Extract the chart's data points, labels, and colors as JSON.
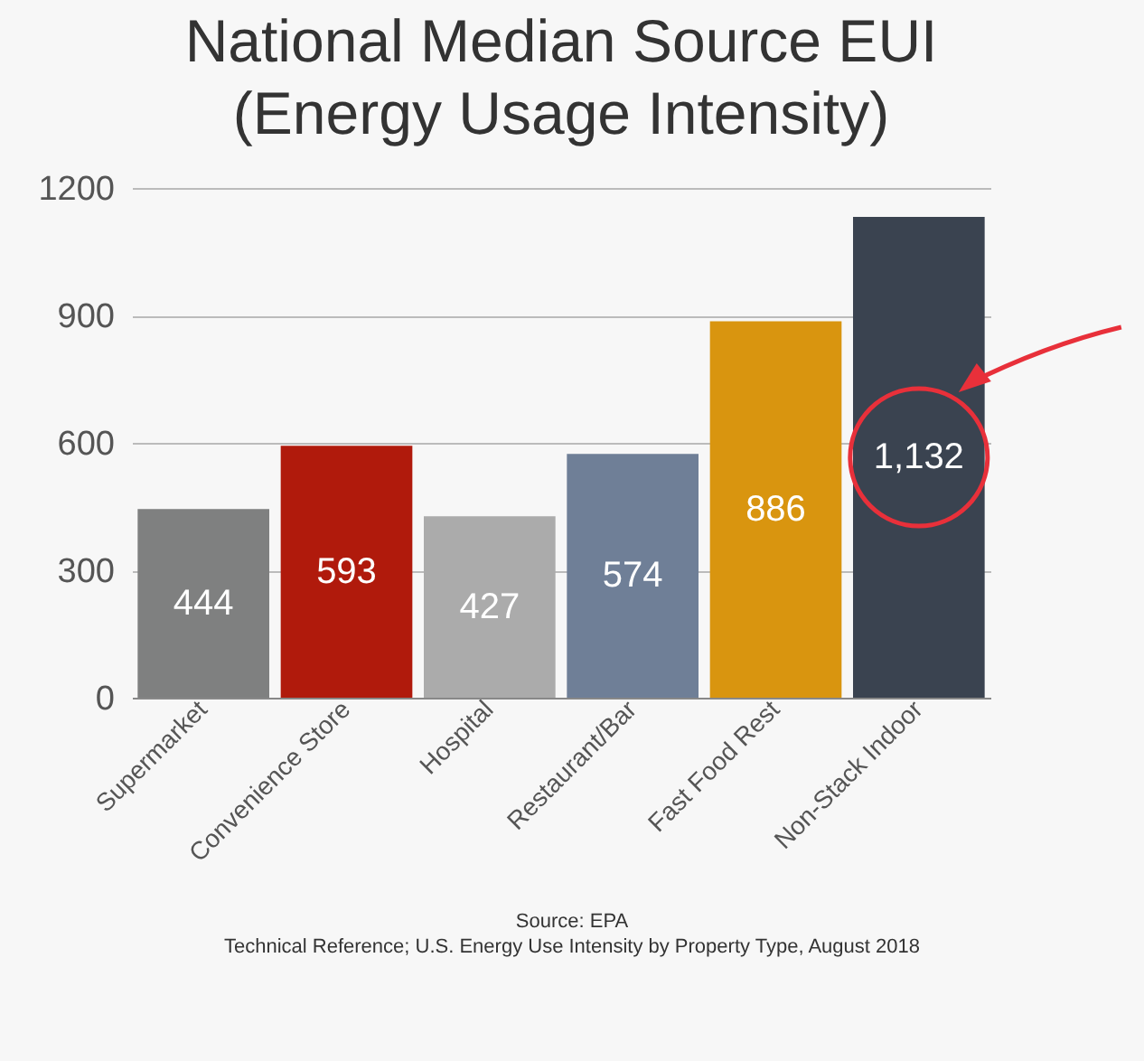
{
  "chart_data": {
    "type": "bar",
    "title": "National Median Source EUI\n(Energy Usage Intensity)",
    "categories": [
      "Supermarket",
      "Convenience Store",
      "Hospital",
      "Restaurant/Bar",
      "Fast Food Rest",
      "Non-Stack Indoor"
    ],
    "values": [
      444,
      593,
      427,
      574,
      886,
      1132
    ],
    "colors": [
      "#7f8080",
      "#b01a0c",
      "#ababab",
      "#6f7f97",
      "#d9950f",
      "#3a4350"
    ],
    "value_labels": [
      "444",
      "593",
      "427",
      "574",
      "886",
      "1,132"
    ],
    "ylim": [
      0,
      1200
    ],
    "yticks": [
      0,
      300,
      600,
      900,
      1200
    ],
    "grid": "y",
    "legend": false,
    "annotations": [
      "Source: EPA",
      "Technical Reference; U.S. Energy Use Intensity by Property Type, August 2018"
    ]
  }
}
